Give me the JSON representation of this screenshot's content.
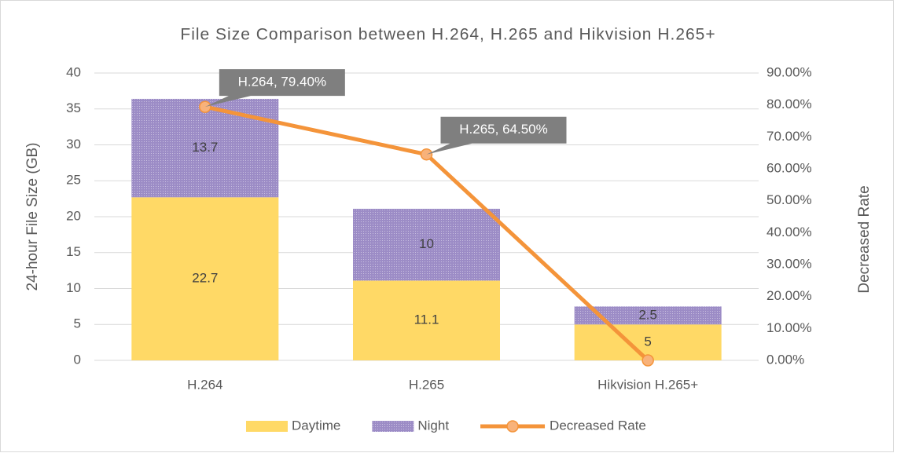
{
  "chart_data": {
    "type": "bar",
    "stacked": true,
    "title": "File Size Comparison between H.264, H.265 and Hikvision H.265+",
    "ylabel": "24-hour File Size (GB)",
    "y2label": "Decreased Rate",
    "categories": [
      "H.264",
      "H.265",
      "Hikvision H.265+"
    ],
    "series": [
      {
        "name": "Daytime",
        "color": "#ffd966",
        "values": [
          22.7,
          11.1,
          5
        ]
      },
      {
        "name": "Night",
        "color": "#9c8cc6",
        "values": [
          13.7,
          10,
          2.5
        ],
        "pattern": "dotted"
      },
      {
        "name": "Decreased Rate",
        "type": "line",
        "axis": "y2",
        "color": "#f4943a",
        "values": [
          79.4,
          64.5,
          0
        ],
        "value_labels": [
          "H.264, 79.40%",
          "H.265, 64.50%",
          null
        ]
      }
    ],
    "ylim": [
      0,
      40
    ],
    "yticks": [
      0,
      5,
      10,
      15,
      20,
      25,
      30,
      35,
      40
    ],
    "y2lim": [
      0,
      90
    ],
    "y2ticks": [
      {
        "value": 0,
        "label": "0.00%"
      },
      {
        "value": 10,
        "label": "10.00%"
      },
      {
        "value": 20,
        "label": "20.00%"
      },
      {
        "value": 30,
        "label": "30.00%"
      },
      {
        "value": 40,
        "label": "40.00%"
      },
      {
        "value": 50,
        "label": "50.00%"
      },
      {
        "value": 60,
        "label": "60.00%"
      },
      {
        "value": 70,
        "label": "70.00%"
      },
      {
        "value": 80,
        "label": "80.00%"
      },
      {
        "value": 90,
        "label": "90.00%"
      }
    ],
    "grid": true,
    "legend": "bottom"
  }
}
